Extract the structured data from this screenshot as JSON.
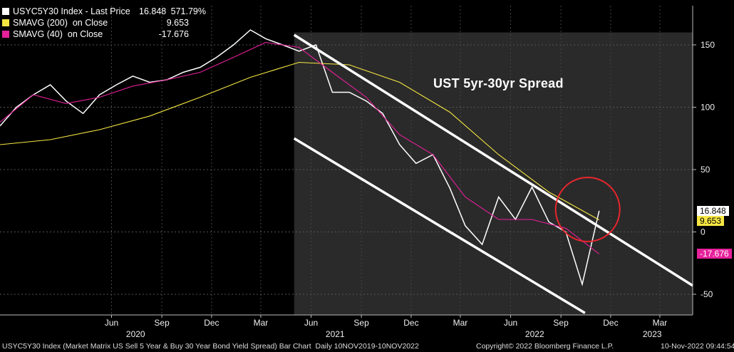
{
  "legend": [
    {
      "name": "USYC5Y30 Index - Last Price",
      "value": "16.848",
      "extra": "571.79%",
      "color": "#ffffff"
    },
    {
      "name": "SMAVG (200)  on Close",
      "value": "9.653",
      "extra": "",
      "color": "#f5e642"
    },
    {
      "name": "SMAVG (40)  on Close",
      "value": "-17.676",
      "extra": "",
      "color": "#e6209a"
    }
  ],
  "annotation_title": "UST 5yr-30yr Spread",
  "badges": {
    "last": "16.848",
    "sma200": "9.653",
    "sma40": "-17.676"
  },
  "footer": {
    "left": "USYC5Y30 Index (Market Matrix US Sell 5 Year & Buy 30 Year Bond Yield Spread) Bar Chart  Daily 10NOV2019-10NOV2022",
    "center": "Copyright© 2022 Bloomberg Finance L.P.",
    "right": "10-Nov-2022 09:44:54"
  },
  "chart_data": {
    "type": "line",
    "title": "UST 5yr-30yr Spread",
    "x_range": [
      "2019-11-10",
      "2023-04-30"
    ],
    "ylim": [
      -65,
      175
    ],
    "y_ticks": [
      150,
      100,
      50,
      0,
      -50
    ],
    "y_tick_labels": [
      "150",
      "100",
      "50",
      "0",
      "-50"
    ],
    "x_ticks": [
      {
        "label": "Jun",
        "date": "2020-06-01"
      },
      {
        "label": "Sep",
        "date": "2020-09-01"
      },
      {
        "label": "Dec",
        "date": "2020-12-01"
      },
      {
        "label": "Mar",
        "date": "2021-03-01"
      },
      {
        "label": "Jun",
        "date": "2021-06-01"
      },
      {
        "label": "Sep",
        "date": "2021-09-01"
      },
      {
        "label": "Dec",
        "date": "2021-12-01"
      },
      {
        "label": "Mar",
        "date": "2022-03-01"
      },
      {
        "label": "Jun",
        "date": "2022-06-01"
      },
      {
        "label": "Sep",
        "date": "2022-09-01"
      },
      {
        "label": "Dec",
        "date": "2022-12-01"
      },
      {
        "label": "Mar",
        "date": "2023-03-01"
      }
    ],
    "year_labels": [
      {
        "label": "2020",
        "date": "2020-07-15"
      },
      {
        "label": "2021",
        "date": "2021-07-15"
      },
      {
        "label": "2022",
        "date": "2022-07-15"
      },
      {
        "label": "2023",
        "date": "2023-02-15"
      }
    ],
    "series": [
      {
        "name": "USYC5Y30 Index - Last Price",
        "color": "#ffffff",
        "x": [
          "2019-11-10",
          "2019-12-10",
          "2020-01-10",
          "2020-02-10",
          "2020-03-10",
          "2020-04-10",
          "2020-05-10",
          "2020-06-10",
          "2020-07-10",
          "2020-08-10",
          "2020-09-10",
          "2020-10-10",
          "2020-11-10",
          "2020-12-10",
          "2021-01-10",
          "2021-02-10",
          "2021-03-10",
          "2021-04-10",
          "2021-05-10",
          "2021-06-10",
          "2021-07-10",
          "2021-08-10",
          "2021-09-10",
          "2021-10-10",
          "2021-11-10",
          "2021-12-10",
          "2022-01-10",
          "2022-02-10",
          "2022-03-10",
          "2022-04-10",
          "2022-05-10",
          "2022-06-10",
          "2022-07-10",
          "2022-08-10",
          "2022-09-10",
          "2022-10-10",
          "2022-11-10"
        ],
        "y": [
          85,
          100,
          110,
          118,
          105,
          95,
          110,
          118,
          125,
          120,
          122,
          128,
          132,
          140,
          150,
          162,
          155,
          150,
          145,
          150,
          112,
          112,
          105,
          95,
          70,
          55,
          62,
          35,
          5,
          -10,
          28,
          10,
          36,
          8,
          0,
          -42,
          17
        ]
      },
      {
        "name": "SMAVG (200)  on Close",
        "color": "#f5e642",
        "x": [
          "2019-11-10",
          "2020-02-10",
          "2020-05-10",
          "2020-08-10",
          "2020-11-10",
          "2021-02-10",
          "2021-05-10",
          "2021-08-10",
          "2021-11-10",
          "2022-02-10",
          "2022-05-10",
          "2022-08-10",
          "2022-11-10"
        ],
        "y": [
          70,
          74,
          82,
          93,
          108,
          124,
          136,
          134,
          120,
          96,
          62,
          32,
          9.653
        ]
      },
      {
        "name": "SMAVG (40)  on Close",
        "color": "#e6209a",
        "x": [
          "2019-11-10",
          "2020-01-10",
          "2020-03-10",
          "2020-05-10",
          "2020-07-10",
          "2020-09-10",
          "2020-11-10",
          "2021-01-10",
          "2021-03-10",
          "2021-05-10",
          "2021-07-10",
          "2021-09-10",
          "2021-11-10",
          "2022-01-10",
          "2022-03-10",
          "2022-05-10",
          "2022-07-10",
          "2022-09-10",
          "2022-11-10"
        ],
        "y": [
          88,
          110,
          103,
          108,
          117,
          122,
          128,
          140,
          152,
          148,
          128,
          108,
          78,
          62,
          28,
          10,
          10,
          3,
          -17.676
        ]
      }
    ],
    "channel": {
      "upper": [
        {
          "x": "2021-05-01",
          "y": 158
        },
        {
          "x": "2023-04-30",
          "y": -43
        }
      ],
      "lower": [
        {
          "x": "2021-05-01",
          "y": 75
        },
        {
          "x": "2022-10-15",
          "y": -65
        }
      ]
    },
    "shaded_region": {
      "from": "2021-05-01",
      "to": "2023-04-30"
    },
    "highlight_circle": {
      "x": "2022-10-20",
      "y": 18
    }
  }
}
